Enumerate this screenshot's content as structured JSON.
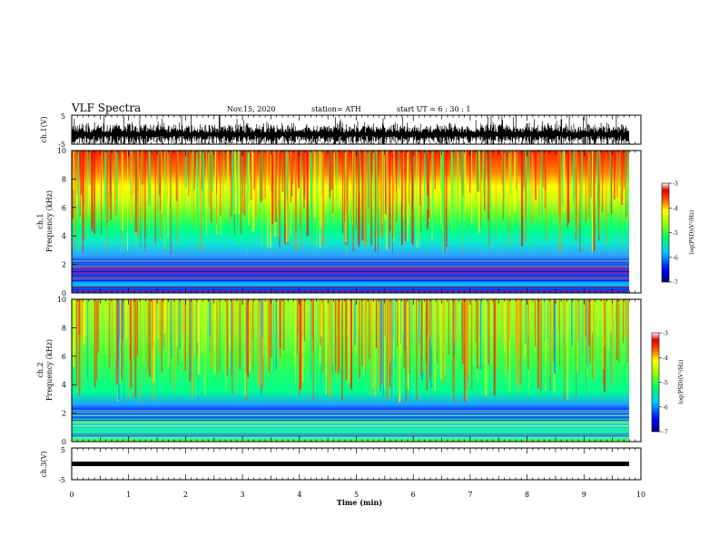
{
  "header": {
    "title": "VLF Spectra",
    "date": "Nov.15, 2020",
    "station": "station= ATH",
    "start": "start  UT  =   6  : 30 : 1"
  },
  "chart_data": [
    {
      "id": "ch1-waveform",
      "type": "line",
      "ylabel": "ch.1(V)",
      "ylim": [
        -5,
        5
      ],
      "yticks": [
        "5",
        "-5"
      ],
      "xlim": [
        0,
        10
      ],
      "description_of_signal": "dense noise waveform",
      "color": "#000000"
    },
    {
      "id": "ch1-spectrogram",
      "type": "heatmap",
      "ylabel_top": "ch.1",
      "ylabel": "Frequency (kHz)",
      "ylim": [
        0,
        10
      ],
      "yticks": [
        "0",
        "2",
        "4",
        "6",
        "8",
        "10"
      ],
      "xlim": [
        0,
        10
      ],
      "colorbar": {
        "label": "log(PSD)(V²/Hz)",
        "range": [
          -7,
          -3
        ],
        "ticks": [
          "-3",
          "-4",
          "-5",
          "-6",
          "-7"
        ]
      }
    },
    {
      "id": "ch2-spectrogram",
      "type": "heatmap",
      "ylabel_top": "ch.2",
      "ylabel": "Frequency (kHz)",
      "ylim": [
        0,
        10
      ],
      "yticks": [
        "0",
        "2",
        "4",
        "6",
        "8",
        "10"
      ],
      "xlim": [
        0,
        10
      ],
      "colorbar": {
        "label": "log(PSD)(V²/Hz)",
        "range": [
          -7,
          -3
        ],
        "ticks": [
          "-3",
          "-4",
          "-5",
          "-6",
          "-7"
        ]
      }
    },
    {
      "id": "ch3-waveform",
      "type": "line",
      "ylabel": "ch.3(V)",
      "ylim": [
        -5,
        5
      ],
      "yticks": [
        "5",
        "-5"
      ],
      "xlim": [
        0,
        10
      ],
      "color": "#000000"
    }
  ],
  "xaxis": {
    "label": "Time  (min)",
    "ticks": [
      "0",
      "1",
      "2",
      "3",
      "4",
      "5",
      "6",
      "7",
      "8",
      "9",
      "10"
    ],
    "data_end": 9.83
  }
}
